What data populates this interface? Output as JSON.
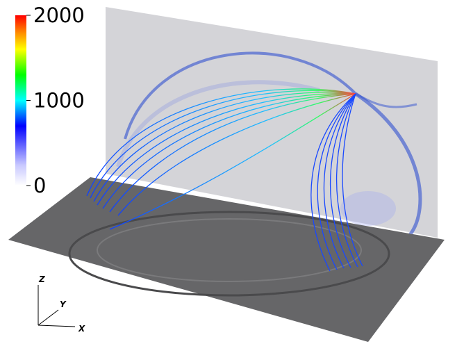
{
  "colorbar": {
    "lim": [
      0,
      2000
    ],
    "ticks": [
      0,
      1000,
      2000
    ]
  },
  "axes": {
    "z": "Z",
    "y": "Y",
    "x": "X"
  }
}
